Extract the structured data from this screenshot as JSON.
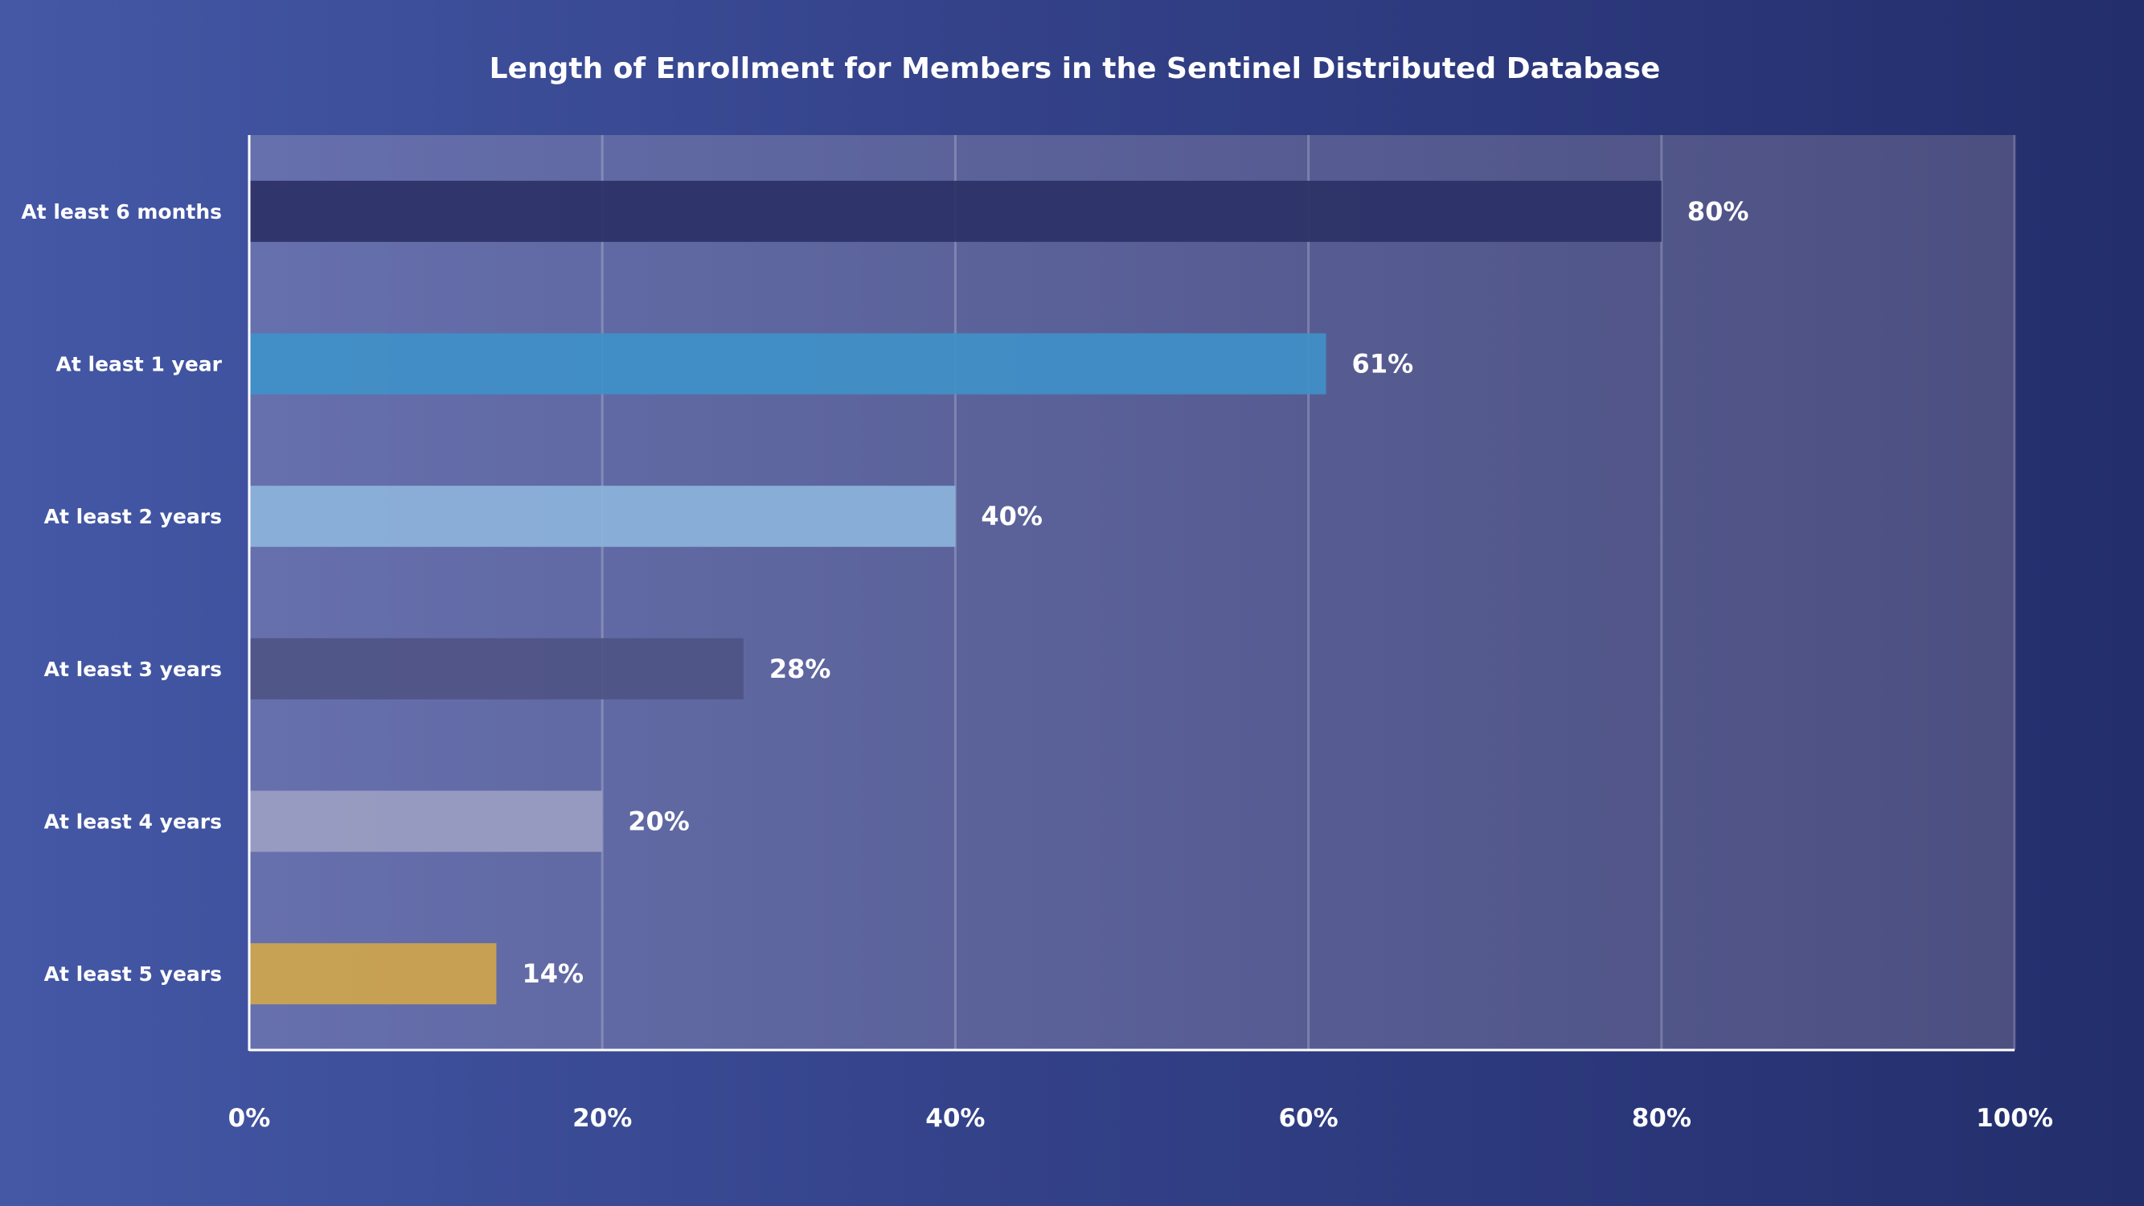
{
  "chart_data": {
    "type": "bar",
    "orientation": "horizontal",
    "title": "Length of Enrollment for Members in the Sentinel Distributed Database",
    "xlabel": "",
    "ylabel": "",
    "categories": [
      "At least 6 months",
      "At least 1 year",
      "At least 2 years",
      "At least 3 years",
      "At least 4 years",
      "At least 5 years"
    ],
    "values": [
      80,
      61,
      40,
      28,
      20,
      14
    ],
    "value_labels": [
      "80%",
      "61%",
      "40%",
      "28%",
      "20%",
      "14%"
    ],
    "bar_colors": [
      "#2b3166",
      "#3f90c8",
      "#8cb3db",
      "#4f5486",
      "#9b9ec2",
      "#cfa54c"
    ],
    "xlim": [
      0,
      100
    ],
    "x_ticks": [
      0,
      20,
      40,
      60,
      80,
      100
    ],
    "x_tick_labels": [
      "0%",
      "20%",
      "40%",
      "60%",
      "80%",
      "100%"
    ],
    "grid": true,
    "legend": "none"
  }
}
